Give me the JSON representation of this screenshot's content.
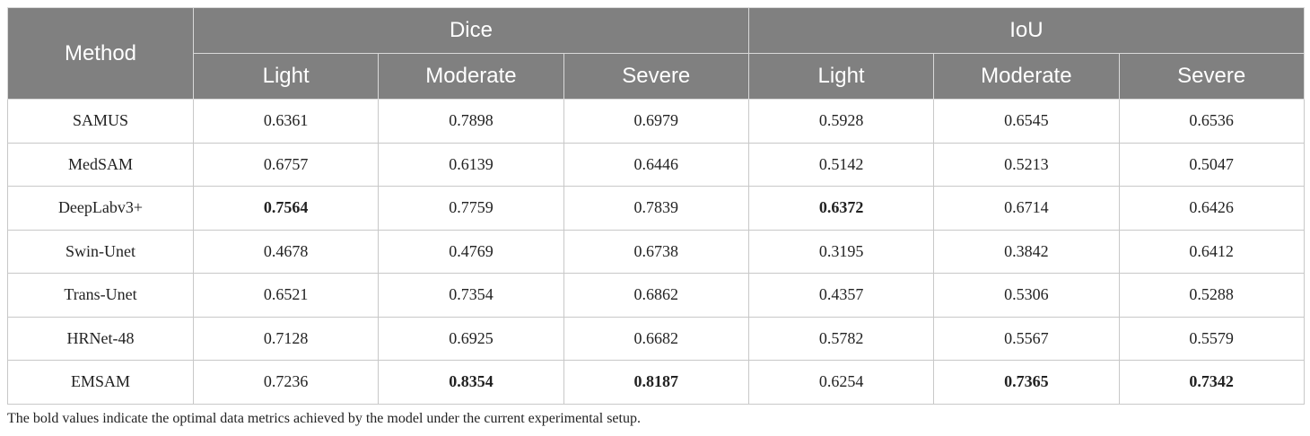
{
  "table": {
    "header": {
      "method": "Method",
      "groups": [
        "Dice",
        "IoU"
      ],
      "subcolumns": [
        "Light",
        "Moderate",
        "Severe",
        "Light",
        "Moderate",
        "Severe"
      ]
    },
    "rows": [
      {
        "method": "SAMUS",
        "values": [
          "0.6361",
          "0.7898",
          "0.6979",
          "0.5928",
          "0.6545",
          "0.6536"
        ],
        "bold": [
          false,
          false,
          false,
          false,
          false,
          false
        ]
      },
      {
        "method": "MedSAM",
        "values": [
          "0.6757",
          "0.6139",
          "0.6446",
          "0.5142",
          "0.5213",
          "0.5047"
        ],
        "bold": [
          false,
          false,
          false,
          false,
          false,
          false
        ]
      },
      {
        "method": "DeepLabv3+",
        "values": [
          "0.7564",
          "0.7759",
          "0.7839",
          "0.6372",
          "0.6714",
          "0.6426"
        ],
        "bold": [
          true,
          false,
          false,
          true,
          false,
          false
        ]
      },
      {
        "method": "Swin-Unet",
        "values": [
          "0.4678",
          "0.4769",
          "0.6738",
          "0.3195",
          "0.3842",
          "0.6412"
        ],
        "bold": [
          false,
          false,
          false,
          false,
          false,
          false
        ]
      },
      {
        "method": "Trans-Unet",
        "values": [
          "0.6521",
          "0.7354",
          "0.6862",
          "0.4357",
          "0.5306",
          "0.5288"
        ],
        "bold": [
          false,
          false,
          false,
          false,
          false,
          false
        ]
      },
      {
        "method": "HRNet-48",
        "values": [
          "0.7128",
          "0.6925",
          "0.6682",
          "0.5782",
          "0.5567",
          "0.5579"
        ],
        "bold": [
          false,
          false,
          false,
          false,
          false,
          false
        ]
      },
      {
        "method": "EMSAM",
        "values": [
          "0.7236",
          "0.8354",
          "0.8187",
          "0.6254",
          "0.7365",
          "0.7342"
        ],
        "bold": [
          false,
          true,
          true,
          false,
          true,
          true
        ]
      }
    ]
  },
  "footnote": "The bold values indicate the optimal data metrics achieved by the model under the current experimental setup."
}
